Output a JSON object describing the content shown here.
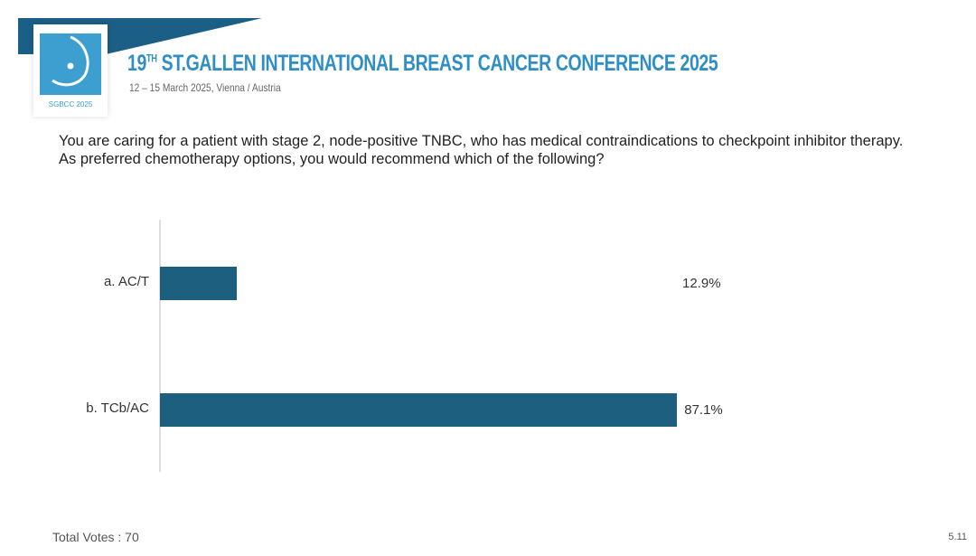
{
  "header": {
    "title_main": "19",
    "title_sup": "TH",
    "title_rest": " ST.GALLEN INTERNATIONAL BREAST CANCER CONFERENCE 2025",
    "subtitle": "12 – 15 March 2025, Vienna / Austria",
    "logo_text": "SGBCC 2025"
  },
  "question": "You are caring for a patient with stage 2, node-positive TNBC, who has medical contraindications to checkpoint inhibitor therapy.  As preferred chemotherapy options, you would recommend which of the following?",
  "chart_data": {
    "type": "bar",
    "orientation": "horizontal",
    "categories": [
      "a.  AC/T",
      "b.  TCb/AC"
    ],
    "values": [
      12.9,
      87.1
    ],
    "value_labels": [
      "12.9%",
      "87.1%"
    ],
    "unit": "%",
    "xlim": [
      0,
      100
    ],
    "color": "#1d5f7f",
    "grid": false
  },
  "footer": {
    "total_votes": "Total Votes : 70",
    "page": "5.11"
  },
  "colors": {
    "accent": "#2f8fc4",
    "bar": "#1d5f7f"
  }
}
